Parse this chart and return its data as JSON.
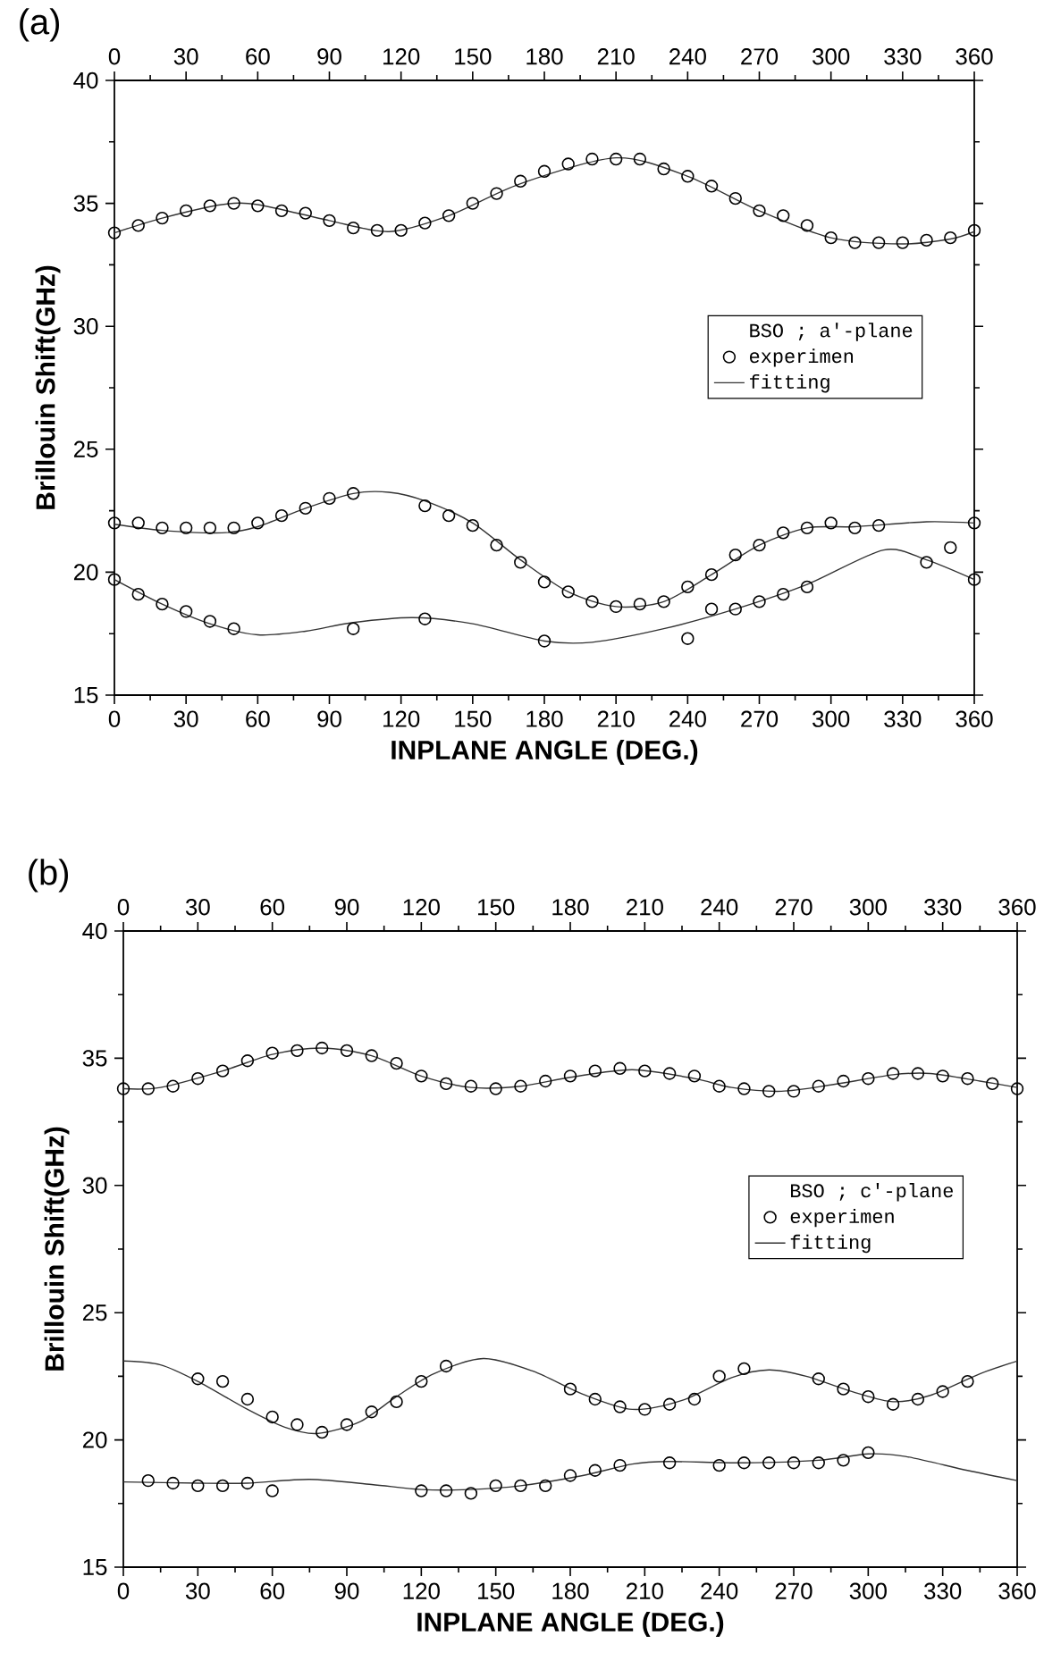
{
  "chart_data": [
    {
      "type": "scatter",
      "title": "(a)",
      "xlabel": "INPLANE ANGLE (DEG.)",
      "ylabel": "Brillouin Shift(GHz)",
      "legend_title": "BSO ; a'-plane",
      "legend": "right",
      "xlim": [
        0,
        360
      ],
      "xticks": [
        0,
        30,
        60,
        90,
        120,
        150,
        180,
        210,
        240,
        270,
        300,
        330,
        360
      ],
      "x2lim": [
        0,
        360
      ],
      "x2ticks": [
        0,
        30,
        60,
        90,
        120,
        150,
        180,
        210,
        240,
        270,
        300,
        330,
        360
      ],
      "ylim": [
        15,
        40
      ],
      "yticks": [
        15,
        20,
        25,
        30,
        35,
        40
      ],
      "series": [
        {
          "name": "experimen",
          "marker": "circle",
          "color": "#000000",
          "x": [
            0,
            10,
            20,
            30,
            40,
            50,
            60,
            70,
            80,
            90,
            100,
            110,
            120,
            130,
            140,
            150,
            160,
            170,
            180,
            190,
            200,
            210,
            220,
            230,
            240,
            250,
            260,
            270,
            280,
            290,
            300,
            310,
            320,
            330,
            340,
            350,
            360
          ],
          "values": [
            33.8,
            34.1,
            34.4,
            34.7,
            34.9,
            35.0,
            34.9,
            34.7,
            34.6,
            34.3,
            34.0,
            33.9,
            33.9,
            34.2,
            34.5,
            35.0,
            35.4,
            35.9,
            36.3,
            36.6,
            36.8,
            36.8,
            36.8,
            36.4,
            36.1,
            35.7,
            35.2,
            34.7,
            34.5,
            34.1,
            33.6,
            33.4,
            33.4,
            33.4,
            33.5,
            33.6,
            33.9
          ]
        },
        {
          "name": "fitting",
          "type": "line",
          "marker": "none",
          "color": "#333333",
          "x": [
            0,
            20,
            45,
            60,
            90,
            115,
            140,
            170,
            210,
            240,
            270,
            300,
            330,
            350,
            360
          ],
          "values": [
            33.8,
            34.4,
            34.95,
            34.95,
            34.3,
            33.85,
            34.5,
            35.8,
            36.85,
            36.1,
            34.7,
            33.6,
            33.35,
            33.55,
            33.85
          ]
        },
        {
          "marker": "circle",
          "color": "#000000",
          "x": [
            0,
            10,
            20,
            30,
            40,
            50,
            60,
            70,
            80,
            90,
            100,
            130,
            140,
            150,
            160,
            170,
            180,
            190,
            200,
            210,
            220,
            230,
            240,
            250,
            260,
            270,
            280,
            290,
            300,
            310,
            320,
            360
          ],
          "values": [
            22.0,
            22.0,
            21.8,
            21.8,
            21.8,
            21.8,
            22.0,
            22.3,
            22.6,
            23.0,
            23.2,
            22.7,
            22.3,
            21.9,
            21.1,
            20.4,
            19.6,
            19.2,
            18.8,
            18.6,
            18.7,
            18.8,
            19.4,
            19.9,
            20.7,
            21.1,
            21.6,
            21.8,
            22.0,
            21.8,
            21.9,
            22.0
          ]
        },
        {
          "type": "line",
          "marker": "none",
          "color": "#333333",
          "x": [
            0,
            20,
            45,
            60,
            80,
            100,
            115,
            130,
            150,
            170,
            190,
            210,
            230,
            250,
            270,
            290,
            310,
            340,
            360
          ],
          "values": [
            21.95,
            21.7,
            21.6,
            21.85,
            22.6,
            23.2,
            23.25,
            22.9,
            22.0,
            20.5,
            19.2,
            18.6,
            18.8,
            19.9,
            21.1,
            21.8,
            21.85,
            22.05,
            22.0
          ]
        },
        {
          "marker": "circle",
          "color": "#000000",
          "x": [
            0,
            10,
            20,
            30,
            40,
            50,
            100,
            130,
            180,
            240,
            250,
            260,
            270,
            280,
            290,
            340,
            350,
            360
          ],
          "values": [
            19.7,
            19.1,
            18.7,
            18.4,
            18.0,
            17.7,
            17.7,
            18.1,
            17.2,
            17.3,
            18.5,
            18.5,
            18.8,
            19.1,
            19.4,
            20.4,
            21.0,
            19.7
          ]
        },
        {
          "type": "line",
          "marker": "none",
          "color": "#333333",
          "x": [
            0,
            20,
            40,
            60,
            80,
            100,
            125,
            150,
            180,
            200,
            230,
            260,
            290,
            322,
            340,
            360
          ],
          "values": [
            19.7,
            18.7,
            17.9,
            17.45,
            17.6,
            17.95,
            18.15,
            17.9,
            17.2,
            17.15,
            17.7,
            18.5,
            19.5,
            20.9,
            20.5,
            19.7
          ]
        }
      ]
    },
    {
      "type": "scatter",
      "title": "(b)",
      "xlabel": "INPLANE ANGLE (DEG.)",
      "ylabel": "Brillouin Shift(GHz)",
      "legend_title": "BSO ; c'-plane",
      "legend": "right",
      "xlim": [
        0,
        360
      ],
      "xticks": [
        0,
        30,
        60,
        90,
        120,
        150,
        180,
        210,
        240,
        270,
        300,
        330,
        360
      ],
      "x2lim": [
        0,
        360
      ],
      "x2ticks": [
        0,
        30,
        60,
        90,
        120,
        150,
        180,
        210,
        240,
        270,
        300,
        330,
        360
      ],
      "ylim": [
        15,
        40
      ],
      "yticks": [
        15,
        20,
        25,
        30,
        35,
        40
      ],
      "series": [
        {
          "name": "experimen",
          "marker": "circle",
          "color": "#000000",
          "x": [
            0,
            10,
            20,
            30,
            40,
            50,
            60,
            70,
            80,
            90,
            100,
            110,
            120,
            130,
            140,
            150,
            160,
            170,
            180,
            190,
            200,
            210,
            220,
            230,
            240,
            250,
            260,
            270,
            280,
            290,
            300,
            310,
            320,
            330,
            340,
            350,
            360
          ],
          "values": [
            33.8,
            33.8,
            33.9,
            34.2,
            34.5,
            34.9,
            35.2,
            35.3,
            35.4,
            35.3,
            35.1,
            34.8,
            34.3,
            34.0,
            33.9,
            33.8,
            33.9,
            34.1,
            34.3,
            34.5,
            34.6,
            34.5,
            34.4,
            34.3,
            33.9,
            33.8,
            33.7,
            33.7,
            33.9,
            34.1,
            34.2,
            34.4,
            34.4,
            34.3,
            34.2,
            34.0,
            33.8
          ]
        },
        {
          "name": "fitting",
          "type": "line",
          "marker": "none",
          "color": "#333333",
          "x": [
            0,
            15,
            40,
            60,
            80,
            100,
            120,
            140,
            160,
            180,
            205,
            230,
            245,
            265,
            285,
            310,
            325,
            345,
            360
          ],
          "values": [
            33.8,
            33.85,
            34.5,
            35.15,
            35.4,
            35.1,
            34.3,
            33.85,
            33.9,
            34.25,
            34.55,
            34.2,
            33.85,
            33.7,
            33.95,
            34.35,
            34.4,
            34.1,
            33.85
          ]
        },
        {
          "marker": "circle",
          "color": "#000000",
          "x": [
            30,
            40,
            50,
            60,
            70,
            80,
            90,
            100,
            110,
            120,
            130,
            180,
            190,
            200,
            210,
            220,
            230,
            240,
            250,
            280,
            290,
            300,
            310,
            320,
            330,
            340
          ],
          "values": [
            22.4,
            22.3,
            21.6,
            20.9,
            20.6,
            20.3,
            20.6,
            21.1,
            21.5,
            22.3,
            22.9,
            22.0,
            21.6,
            21.3,
            21.2,
            21.4,
            21.6,
            22.5,
            22.8,
            22.4,
            22.0,
            21.7,
            21.4,
            21.6,
            21.9,
            22.3
          ]
        },
        {
          "type": "line",
          "marker": "none",
          "color": "#333333",
          "x": [
            0,
            15,
            30,
            50,
            65,
            78,
            95,
            110,
            125,
            145,
            165,
            185,
            205,
            225,
            245,
            260,
            275,
            295,
            310,
            325,
            345,
            360
          ],
          "values": [
            23.1,
            22.95,
            22.3,
            21.2,
            20.5,
            20.25,
            20.7,
            21.7,
            22.6,
            23.2,
            22.7,
            21.8,
            21.2,
            21.55,
            22.45,
            22.75,
            22.5,
            21.85,
            21.5,
            21.75,
            22.6,
            23.1
          ]
        },
        {
          "marker": "circle",
          "color": "#000000",
          "x": [
            10,
            20,
            30,
            40,
            50,
            60,
            120,
            130,
            140,
            150,
            160,
            170,
            180,
            190,
            200,
            220,
            240,
            250,
            260,
            270,
            280,
            290,
            300
          ],
          "values": [
            18.4,
            18.3,
            18.2,
            18.2,
            18.3,
            18.0,
            18.0,
            18.0,
            17.9,
            18.2,
            18.2,
            18.2,
            18.6,
            18.8,
            19.0,
            19.1,
            19.0,
            19.1,
            19.1,
            19.1,
            19.1,
            19.2,
            19.5
          ]
        },
        {
          "type": "line",
          "marker": "none",
          "color": "#333333",
          "x": [
            0,
            30,
            50,
            75,
            100,
            120,
            140,
            160,
            185,
            205,
            220,
            250,
            280,
            300,
            315,
            340,
            360
          ],
          "values": [
            18.35,
            18.3,
            18.3,
            18.45,
            18.25,
            18.05,
            18.05,
            18.2,
            18.6,
            19.05,
            19.15,
            19.1,
            19.2,
            19.45,
            19.35,
            18.8,
            18.4
          ]
        }
      ]
    }
  ]
}
